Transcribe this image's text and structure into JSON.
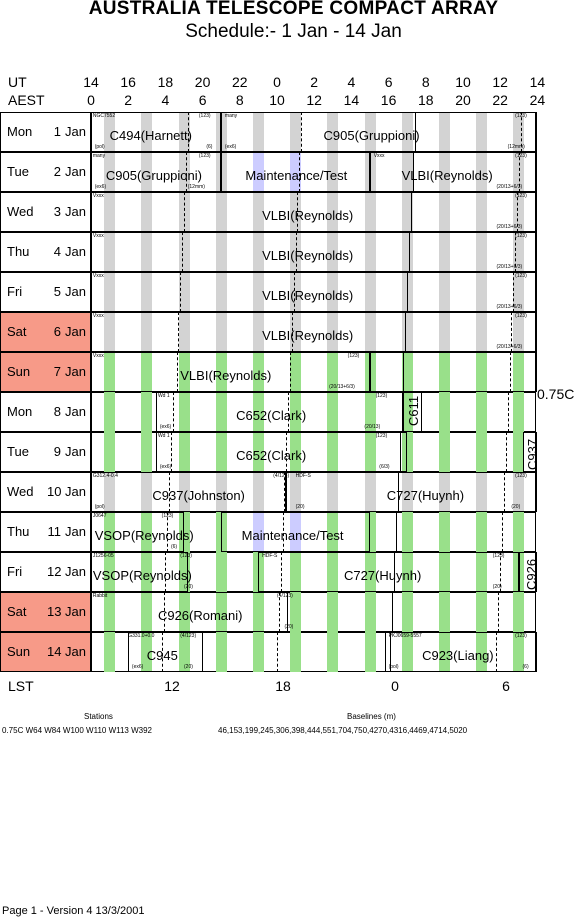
{
  "title": "AUSTRALIA TELESCOPE COMPACT ARRAY",
  "subtitle": "Schedule:- 1  Jan - 14 Jan",
  "ut_label": "UT",
  "aest_label": "AEST",
  "ut_ticks": [
    "14",
    "16",
    "18",
    "20",
    "22",
    "0",
    "2",
    "4",
    "6",
    "8",
    "10",
    "12",
    "14"
  ],
  "aest_ticks": [
    "0",
    "2",
    "4",
    "6",
    "8",
    "10",
    "12",
    "14",
    "16",
    "18",
    "20",
    "22",
    "24"
  ],
  "lst_label": "LST",
  "lst_ticks": [
    "12",
    "18",
    "0",
    "6"
  ],
  "config_right": "0.75C",
  "days": [
    {
      "day": "Mon",
      "date": "1",
      "mon": "Jan",
      "weekend": false
    },
    {
      "day": "Tue",
      "date": "2",
      "mon": "Jan",
      "weekend": false
    },
    {
      "day": "Wed",
      "date": "3",
      "mon": "Jan",
      "weekend": false
    },
    {
      "day": "Thu",
      "date": "4",
      "mon": "Jan",
      "weekend": false
    },
    {
      "day": "Fri",
      "date": "5",
      "mon": "Jan",
      "weekend": false
    },
    {
      "day": "Sat",
      "date": "6",
      "mon": "Jan",
      "weekend": true
    },
    {
      "day": "Sun",
      "date": "7",
      "mon": "Jan",
      "weekend": true
    },
    {
      "day": "Mon",
      "date": "8",
      "mon": "Jan",
      "weekend": false
    },
    {
      "day": "Tue",
      "date": "9",
      "mon": "Jan",
      "weekend": false
    },
    {
      "day": "Wed",
      "date": "10",
      "mon": "Jan",
      "weekend": false
    },
    {
      "day": "Thu",
      "date": "11",
      "mon": "Jan",
      "weekend": false
    },
    {
      "day": "Fri",
      "date": "12",
      "mon": "Jan",
      "weekend": false
    },
    {
      "day": "Sat",
      "date": "13",
      "mon": "Jan",
      "weekend": true
    },
    {
      "day": "Sun",
      "date": "14",
      "mon": "Jan",
      "weekend": true
    }
  ],
  "labels": {
    "r0a": "C494(Harnett)",
    "r0b": "C905(Gruppioni)",
    "r0s1": "NGC7552",
    "r0s2": "(123)",
    "r0s3": "many",
    "r0s4": "(123)",
    "r0s5": "(pol)",
    "r0s6": "(6)",
    "r0s7": "(ex6)",
    "r0s8": "(12mm)",
    "r1a": "C905(Gruppioni)",
    "r1b": "Maintenance/Test",
    "r1c": "VLBI(Reynolds)",
    "r1s1": "many",
    "r1s2": "(123)",
    "r1s3": "Vxxx",
    "r1s4": "(123)",
    "r1s5": "(ex6)",
    "r1s6": "(12mm)",
    "r1s7": "(20/13+6/3)",
    "r2a": "VLBI(Reynolds)",
    "r2s1": "Vxxx",
    "r2s2": "(123)",
    "r2s3": "(20/13+6/3)",
    "r3a": "VLBI(Reynolds)",
    "r3s1": "Vxxx",
    "r3s2": "(123)",
    "r3s3": "(20/13+6/3)",
    "r4a": "VLBI(Reynolds)",
    "r4s1": "Vxxx",
    "r4s2": "(123)",
    "r4s3": "(20/13+6/3)",
    "r5a": "VLBI(Reynolds)",
    "r5s1": "Vxxx",
    "r5s2": "(123)",
    "r5s3": "(20/13+6/3)",
    "r6a": "VLBI(Reynolds)",
    "r6s1": "Vxxx",
    "r6s2": "(123)",
    "r6s3": "(20/13+6/3)",
    "r7a": "C652(Clark)",
    "r7b": "C611",
    "r7s1": "Wd 1",
    "r7s2": "(123)",
    "r7s3": "(ex6)",
    "r7s4": "(20/13)",
    "r8a": "C652(Clark)",
    "r8b": "C937",
    "r8s1": "Wd 1",
    "r8s2": "(123)",
    "r8s3": "(ex6)",
    "r8s4": "(6/3)",
    "r9a": "C937(Johnston)",
    "r9b": "C727(Huynh)",
    "r9s1": "G312.4-0.4",
    "r9s2": "(4/123)",
    "r9s3": "HDF-S",
    "r9s4": "(123)",
    "r9s5": "(pol)",
    "r9s6": "(20)",
    "r9s7": "(20)",
    "r10a": "VSOP(Reynolds)",
    "r10b": "Maintenance/Test",
    "r10s1": "J0647",
    "r10s2": "(123)",
    "r10s3": "(6)",
    "r11a": "VSOP(Reynolds)",
    "r11b": "C727(Huynh)",
    "r11c": "C926",
    "r11s1": "J1256-05",
    "r11s2": "(123)",
    "r11s3": "HDF-S",
    "r11s4": "(123)",
    "r11s5": "(20)",
    "r11s6": "(20)",
    "r12a": "C926(Romani)",
    "r12s1": "Rabbit",
    "r12s2": "(4/123)",
    "r12s3": "(20)",
    "r13a": "C945",
    "r13b": "C923(Liang)",
    "r13s1": "G331.0+0.0",
    "r13s2": "(4/123)",
    "r13s3": "PKJ0659-5557",
    "r13s4": "(123)",
    "r13s5": "(ex6)",
    "r13s6": "(20)",
    "r13s7": "(pol)",
    "r13s8": "(6)"
  },
  "stations_title": "Stations",
  "stations_value": "0.75C  W64 W84 W100 W110 W113 W392",
  "baselines_title": "Baselines (m)",
  "baselines_value": "46,153,199,245,306,398,444,551,704,750,4270,4316,4469,4714,5020",
  "footer": "Page 1 - Version 4  13/3/2001",
  "colors": {
    "gray": "#d3d3d3",
    "green": "#99e08a",
    "lavender": "#ccccff",
    "weekend": "#f79a88"
  }
}
